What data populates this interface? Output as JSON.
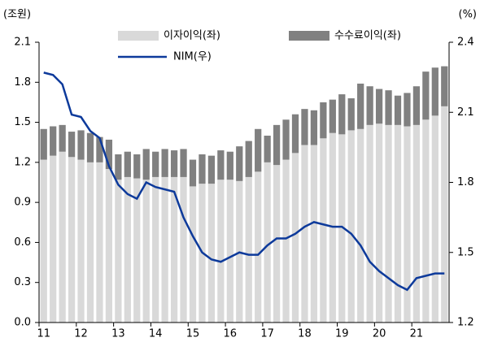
{
  "chart_data": {
    "type": "bar-line",
    "y_label": "(조원)",
    "y2_label": "(%)",
    "categories": [
      "11",
      null,
      null,
      null,
      "12",
      null,
      null,
      null,
      "13",
      null,
      null,
      null,
      "14",
      null,
      null,
      null,
      "15",
      null,
      null,
      null,
      "16",
      null,
      null,
      null,
      "17",
      null,
      null,
      null,
      "18",
      null,
      null,
      null,
      "19",
      null,
      null,
      null,
      "20",
      null,
      null,
      null,
      "21",
      null,
      null,
      null
    ],
    "series": [
      {
        "name": "이자이익(좌)",
        "color": "#d9d9d9",
        "kind": "bar",
        "values": [
          1.22,
          1.25,
          1.28,
          1.24,
          1.22,
          1.2,
          1.2,
          1.15,
          1.07,
          1.09,
          1.08,
          1.07,
          1.09,
          1.09,
          1.09,
          1.09,
          1.02,
          1.04,
          1.04,
          1.07,
          1.07,
          1.06,
          1.09,
          1.13,
          1.2,
          1.18,
          1.22,
          1.27,
          1.33,
          1.33,
          1.38,
          1.42,
          1.41,
          1.44,
          1.45,
          1.48,
          1.49,
          1.48,
          1.48,
          1.47,
          1.48,
          1.52,
          1.55,
          1.62
        ]
      },
      {
        "name": "수수료이익(좌)",
        "color": "#808080",
        "kind": "bar",
        "values": [
          0.23,
          0.22,
          0.2,
          0.19,
          0.22,
          0.22,
          0.19,
          0.22,
          0.19,
          0.19,
          0.18,
          0.23,
          0.19,
          0.21,
          0.2,
          0.21,
          0.2,
          0.22,
          0.21,
          0.22,
          0.21,
          0.26,
          0.27,
          0.32,
          0.2,
          0.3,
          0.3,
          0.29,
          0.27,
          0.26,
          0.27,
          0.25,
          0.3,
          0.24,
          0.34,
          0.29,
          0.26,
          0.26,
          0.22,
          0.25,
          0.29,
          0.36,
          0.36,
          0.3
        ]
      },
      {
        "name": "NIM(우)",
        "color": "#0d3a9b",
        "kind": "line",
        "axis": "y2",
        "values": [
          2.27,
          2.26,
          2.22,
          2.09,
          2.08,
          2.02,
          1.99,
          1.87,
          1.79,
          1.75,
          1.73,
          1.8,
          1.78,
          1.77,
          1.76,
          1.65,
          1.57,
          1.5,
          1.47,
          1.46,
          1.48,
          1.5,
          1.49,
          1.49,
          1.53,
          1.56,
          1.56,
          1.58,
          1.61,
          1.63,
          1.62,
          1.61,
          1.61,
          1.58,
          1.53,
          1.46,
          1.42,
          1.39,
          1.36,
          1.34,
          1.39,
          1.4,
          1.41,
          1.41
        ]
      }
    ],
    "ylim": [
      0,
      2.1
    ],
    "yticks": [
      {
        "value": 0,
        "label": "0.0"
      },
      0.3,
      0.6,
      0.9,
      1.2,
      1.5,
      1.8,
      2.1
    ],
    "y2lim": [
      1.2,
      2.4
    ],
    "y2ticks": [
      1.2,
      1.5,
      1.8,
      2.1,
      2.4
    ]
  }
}
